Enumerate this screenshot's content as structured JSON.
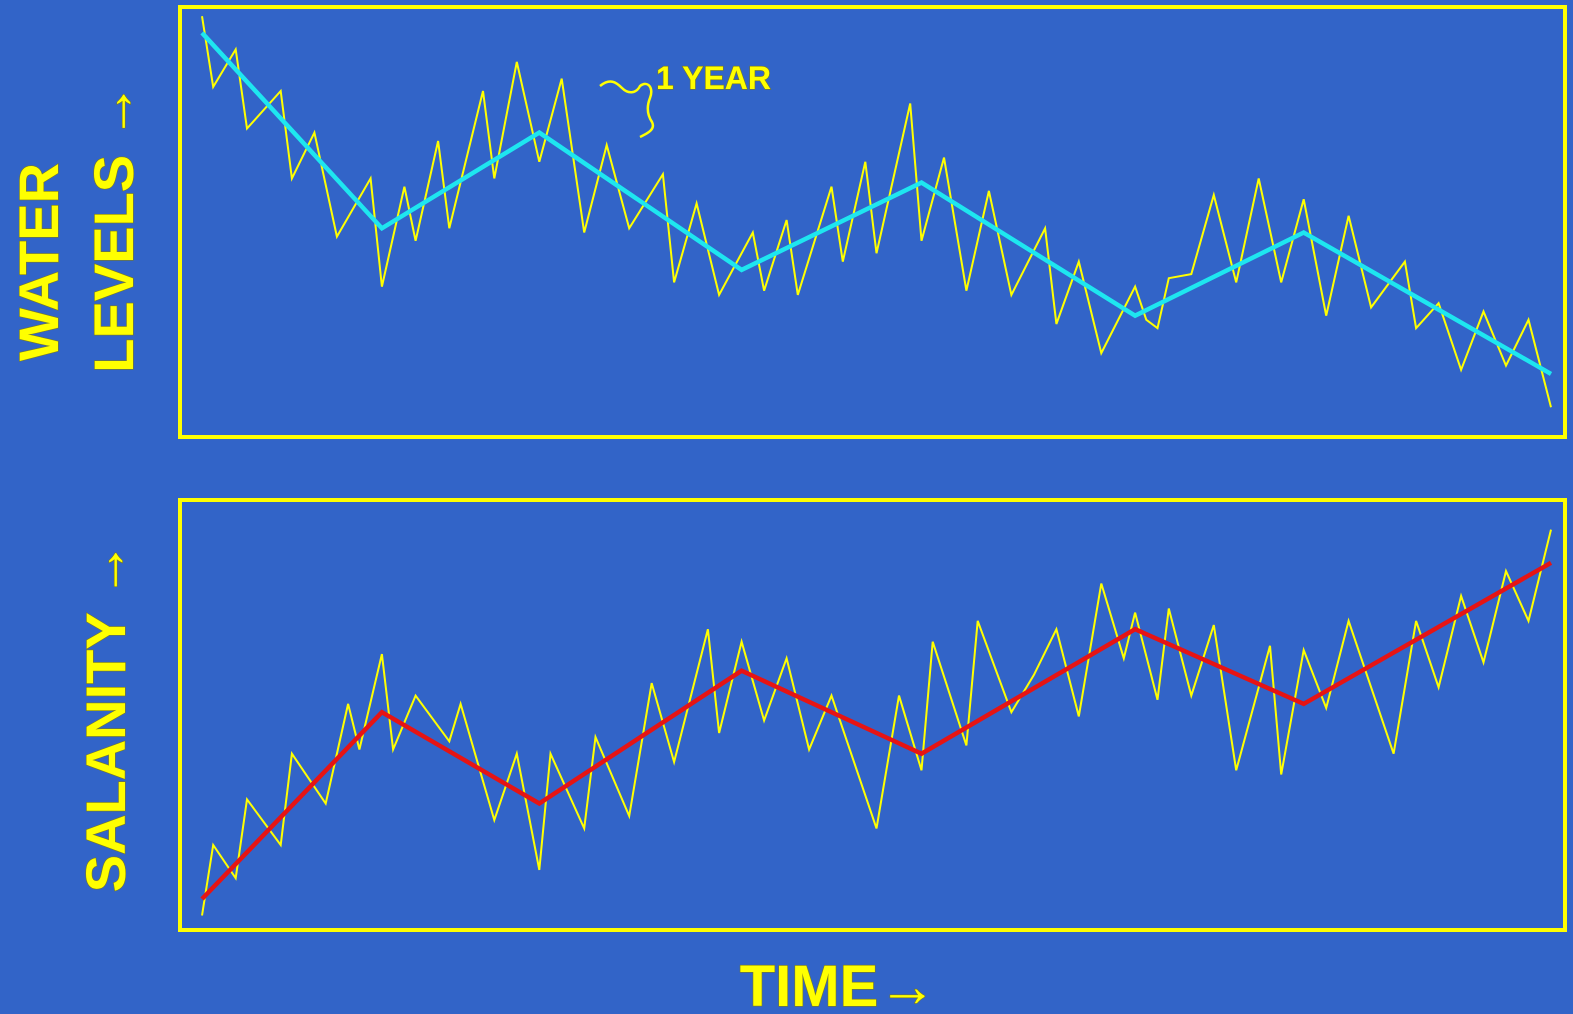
{
  "colors": {
    "background": "#3264c8",
    "frame": "#ffff00",
    "text": "#ffff00",
    "yearly_line": "#ffff00",
    "water_trend": "#1ee6f0",
    "salinity_trend": "#e61414"
  },
  "labels": {
    "water_line1": "WATER",
    "water_line2": "LEVELS →",
    "salinity": "SALANITY →",
    "time": "TIME→",
    "one_year": "1 YEAR"
  },
  "chart_data": [
    {
      "type": "line",
      "title": "",
      "xlabel": "TIME→",
      "ylabel": "WATER LEVELS →",
      "xlim": [
        0,
        60
      ],
      "ylim": [
        0,
        100
      ],
      "grid": false,
      "annotations": [
        {
          "text": "1 YEAR",
          "x": 19,
          "y": 84
        }
      ],
      "series": [
        {
          "role": "yearly",
          "color": "#ffff00",
          "x": [
            0,
            0.5,
            1.5,
            2,
            3.5,
            4,
            5,
            6,
            7.5,
            8,
            9,
            9.5,
            10.5,
            11,
            12.5,
            13,
            14,
            15,
            16,
            17,
            18,
            19,
            20.5,
            21,
            22,
            23,
            24.5,
            25,
            26,
            26.5,
            28,
            28.5,
            29.5,
            30,
            31.5,
            32,
            33,
            34,
            35,
            36,
            37.5,
            38,
            39,
            40,
            41.5,
            42,
            42.5,
            43,
            44,
            45,
            46,
            47,
            48,
            49,
            50,
            51,
            52,
            53.5,
            54,
            55,
            56,
            57,
            58,
            59,
            60
          ],
          "y": [
            99,
            82,
            91,
            72,
            81,
            60,
            71,
            46,
            60,
            34,
            58,
            45,
            69,
            48,
            81,
            60,
            88,
            64,
            84,
            47,
            68,
            48,
            61,
            35,
            54,
            32,
            47,
            33,
            50,
            32,
            58,
            40,
            64,
            42,
            78,
            45,
            65,
            33,
            57,
            32,
            48,
            25,
            40,
            18,
            34,
            26,
            24,
            36,
            37,
            56,
            35,
            60,
            35,
            55,
            27,
            51,
            29,
            40,
            24,
            30,
            14,
            28,
            15,
            26,
            5
          ]
        },
        {
          "role": "trend",
          "color": "#1ee6f0",
          "x": [
            0,
            8,
            15,
            24,
            32,
            41.5,
            49,
            60
          ],
          "y": [
            95,
            48,
            71,
            38,
            59,
            27,
            47,
            13
          ]
        }
      ]
    },
    {
      "type": "line",
      "title": "",
      "xlabel": "TIME→",
      "ylabel": "SALANITY →",
      "xlim": [
        0,
        60
      ],
      "ylim": [
        0,
        100
      ],
      "grid": false,
      "series": [
        {
          "role": "yearly",
          "color": "#ffff00",
          "x": [
            0,
            0.5,
            1.5,
            2,
            3.5,
            4,
            5.5,
            6.5,
            7,
            8,
            8.5,
            9.5,
            11,
            11.5,
            13,
            14,
            15,
            15.5,
            17,
            17.5,
            19,
            20,
            21,
            22.5,
            23,
            24,
            25,
            26,
            27,
            28,
            30,
            31,
            32,
            32.5,
            34,
            34.5,
            36,
            37,
            38,
            39,
            40,
            41,
            41.5,
            42.5,
            43,
            44,
            45,
            46,
            47.5,
            48,
            49,
            50,
            51,
            53,
            54,
            55,
            56,
            57,
            58,
            59,
            60
          ],
          "y": [
            3,
            20,
            12,
            31,
            20,
            42,
            30,
            54,
            43,
            66,
            43,
            56,
            45,
            54,
            26,
            42,
            14,
            42,
            24,
            46,
            27,
            59,
            40,
            72,
            47,
            69,
            50,
            65,
            43,
            56,
            24,
            56,
            38,
            69,
            44,
            74,
            52,
            61,
            72,
            51,
            83,
            65,
            76,
            55,
            77,
            56,
            73,
            38,
            68,
            37,
            67,
            53,
            74,
            42,
            74,
            58,
            80,
            64,
            86,
            74,
            96
          ]
        },
        {
          "role": "trend",
          "color": "#e61414",
          "x": [
            0,
            8,
            15,
            24,
            32,
            41.5,
            49,
            60
          ],
          "y": [
            7,
            52,
            30,
            62,
            42,
            72,
            54,
            88
          ]
        }
      ]
    }
  ]
}
